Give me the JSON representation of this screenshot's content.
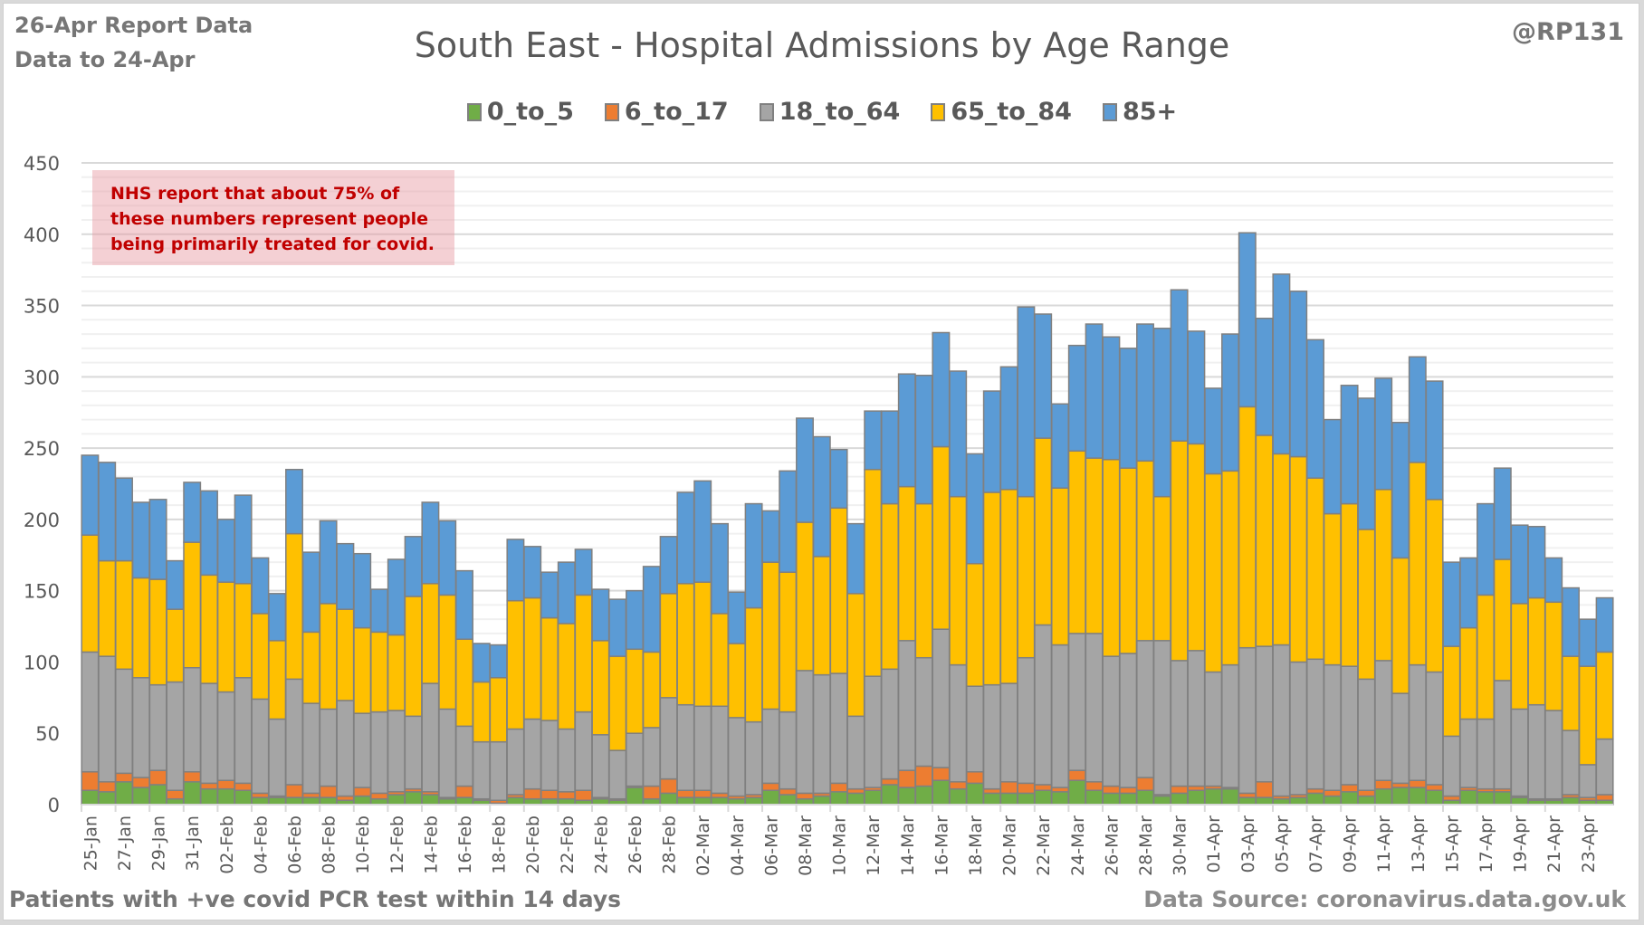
{
  "header": {
    "report_line1": "26-Apr Report Data",
    "report_line2": "Data to 24-Apr",
    "handle": "@RP131"
  },
  "note": "NHS report that about 75% of these numbers represent people being primarily treated for covid.",
  "footer": {
    "left": "Patients with  +ve covid PCR test within 14 days",
    "right": "Data Source: coronavirus.data.gov.uk"
  },
  "chart_data": {
    "type": "bar",
    "stacked": true,
    "title": "South East - Hospital Admissions by Age Range",
    "xlabel": "",
    "ylabel": "",
    "ylim": [
      0,
      450
    ],
    "yticks": [
      0,
      50,
      100,
      150,
      200,
      250,
      300,
      350,
      400,
      450
    ],
    "minor_grid_step": 10,
    "grid": true,
    "legend_position": "top",
    "categories": [
      "25-Jan",
      "26-Jan",
      "27-Jan",
      "28-Jan",
      "29-Jan",
      "30-Jan",
      "31-Jan",
      "01-Feb",
      "02-Feb",
      "03-Feb",
      "04-Feb",
      "05-Feb",
      "06-Feb",
      "07-Feb",
      "08-Feb",
      "09-Feb",
      "10-Feb",
      "11-Feb",
      "12-Feb",
      "13-Feb",
      "14-Feb",
      "15-Feb",
      "16-Feb",
      "17-Feb",
      "18-Feb",
      "19-Feb",
      "20-Feb",
      "21-Feb",
      "22-Feb",
      "23-Feb",
      "24-Feb",
      "25-Feb",
      "26-Feb",
      "27-Feb",
      "28-Feb",
      "01-Mar",
      "02-Mar",
      "03-Mar",
      "04-Mar",
      "05-Mar",
      "06-Mar",
      "07-Mar",
      "08-Mar",
      "09-Mar",
      "10-Mar",
      "11-Mar",
      "12-Mar",
      "13-Mar",
      "14-Mar",
      "15-Mar",
      "16-Mar",
      "17-Mar",
      "18-Mar",
      "19-Mar",
      "20-Mar",
      "21-Mar",
      "22-Mar",
      "23-Mar",
      "24-Mar",
      "25-Mar",
      "26-Mar",
      "27-Mar",
      "28-Mar",
      "29-Mar",
      "30-Mar",
      "31-Mar",
      "01-Apr",
      "02-Apr",
      "03-Apr",
      "04-Apr",
      "05-Apr",
      "06-Apr",
      "07-Apr",
      "08-Apr",
      "09-Apr",
      "10-Apr",
      "11-Apr",
      "12-Apr",
      "13-Apr",
      "14-Apr",
      "15-Apr",
      "16-Apr",
      "17-Apr",
      "18-Apr",
      "19-Apr",
      "20-Apr",
      "21-Apr",
      "22-Apr",
      "23-Apr",
      "24-Apr"
    ],
    "tick_labels": [
      "25-Jan",
      "27-Jan",
      "29-Jan",
      "31-Jan",
      "02-Feb",
      "04-Feb",
      "06-Feb",
      "08-Feb",
      "10-Feb",
      "12-Feb",
      "14-Feb",
      "16-Feb",
      "18-Feb",
      "20-Feb",
      "22-Feb",
      "24-Feb",
      "26-Feb",
      "28-Feb",
      "02-Mar",
      "04-Mar",
      "06-Mar",
      "08-Mar",
      "10-Mar",
      "12-Mar",
      "14-Mar",
      "16-Mar",
      "18-Mar",
      "20-Mar",
      "22-Mar",
      "24-Mar",
      "26-Mar",
      "28-Mar",
      "30-Mar",
      "01-Apr",
      "03-Apr",
      "05-Apr",
      "07-Apr",
      "09-Apr",
      "11-Apr",
      "13-Apr",
      "15-Apr",
      "17-Apr",
      "19-Apr",
      "21-Apr",
      "23-Apr"
    ],
    "series": [
      {
        "name": "0_to_5",
        "color": "#70ad47",
        "values": [
          10,
          9,
          16,
          12,
          14,
          4,
          16,
          11,
          11,
          10,
          5,
          5,
          5,
          5,
          5,
          3,
          6,
          4,
          7,
          9,
          7,
          4,
          5,
          3,
          1,
          5,
          4,
          4,
          4,
          3,
          4,
          3,
          12,
          4,
          8,
          5,
          5,
          5,
          4,
          5,
          10,
          7,
          4,
          6,
          9,
          8,
          10,
          14,
          12,
          13,
          17,
          11,
          15,
          8,
          8,
          8,
          10,
          9,
          17,
          10,
          8,
          8,
          10,
          6,
          8,
          10,
          11,
          11,
          5,
          5,
          4,
          5,
          8,
          6,
          9,
          6,
          11,
          12,
          12,
          10,
          3,
          10,
          9,
          9,
          5,
          3,
          3,
          5,
          3,
          3
        ]
      },
      {
        "name": "6_to_17",
        "color": "#ed7d31",
        "values": [
          13,
          7,
          6,
          7,
          10,
          6,
          7,
          4,
          6,
          5,
          3,
          1,
          9,
          3,
          8,
          3,
          6,
          4,
          2,
          2,
          2,
          1,
          8,
          1,
          2,
          2,
          7,
          6,
          5,
          7,
          1,
          1,
          1,
          9,
          10,
          5,
          5,
          3,
          2,
          2,
          5,
          4,
          4,
          2,
          6,
          3,
          2,
          4,
          12,
          14,
          9,
          5,
          8,
          3,
          8,
          7,
          4,
          3,
          7,
          6,
          5,
          4,
          9,
          1,
          5,
          3,
          2,
          1,
          3,
          11,
          2,
          2,
          3,
          4,
          5,
          4,
          6,
          3,
          5,
          4,
          3,
          2,
          2,
          2,
          1,
          1,
          1,
          2,
          2,
          4
        ]
      },
      {
        "name": "18_to_64",
        "color": "#a5a5a5",
        "values": [
          84,
          88,
          73,
          70,
          60,
          76,
          73,
          70,
          62,
          74,
          66,
          54,
          74,
          63,
          54,
          67,
          52,
          57,
          57,
          51,
          76,
          62,
          42,
          40,
          41,
          46,
          49,
          49,
          44,
          55,
          44,
          34,
          37,
          41,
          57,
          60,
          59,
          61,
          55,
          51,
          52,
          54,
          86,
          83,
          77,
          51,
          78,
          77,
          91,
          76,
          97,
          82,
          60,
          73,
          69,
          88,
          112,
          100,
          96,
          104,
          91,
          94,
          96,
          108,
          88,
          95,
          80,
          86,
          102,
          95,
          106,
          93,
          91,
          88,
          83,
          78,
          84,
          63,
          81,
          79,
          42,
          48,
          49,
          76,
          61,
          66,
          62,
          45,
          23,
          39
        ]
      },
      {
        "name": "65_to_84",
        "color": "#ffc000",
        "values": [
          82,
          67,
          76,
          70,
          74,
          51,
          88,
          76,
          77,
          66,
          60,
          55,
          102,
          50,
          74,
          64,
          60,
          56,
          53,
          84,
          70,
          80,
          61,
          42,
          45,
          90,
          85,
          72,
          74,
          82,
          66,
          66,
          59,
          53,
          73,
          85,
          87,
          65,
          52,
          80,
          103,
          98,
          104,
          83,
          116,
          86,
          145,
          116,
          108,
          108,
          128,
          118,
          86,
          135,
          136,
          113,
          131,
          110,
          128,
          123,
          138,
          130,
          126,
          101,
          154,
          145,
          139,
          136,
          169,
          148,
          134,
          144,
          127,
          106,
          114,
          105,
          120,
          95,
          142,
          121,
          63,
          64,
          87,
          85,
          74,
          75,
          76,
          52,
          69,
          61
        ]
      },
      {
        "name": "85+",
        "color": "#5b9bd5",
        "values": [
          56,
          69,
          58,
          53,
          56,
          34,
          42,
          59,
          44,
          62,
          39,
          33,
          45,
          56,
          58,
          46,
          52,
          30,
          53,
          42,
          57,
          52,
          48,
          27,
          23,
          43,
          36,
          32,
          43,
          32,
          36,
          40,
          41,
          60,
          40,
          64,
          71,
          63,
          36,
          73,
          36,
          71,
          73,
          84,
          41,
          49,
          41,
          65,
          79,
          90,
          80,
          88,
          77,
          71,
          86,
          133,
          87,
          59,
          74,
          94,
          86,
          84,
          96,
          118,
          106,
          79,
          60,
          96,
          122,
          82,
          126,
          116,
          97,
          66,
          83,
          92,
          78,
          95,
          74,
          83,
          59,
          49,
          64,
          64,
          55,
          50,
          31,
          48,
          33,
          38
        ]
      }
    ]
  }
}
